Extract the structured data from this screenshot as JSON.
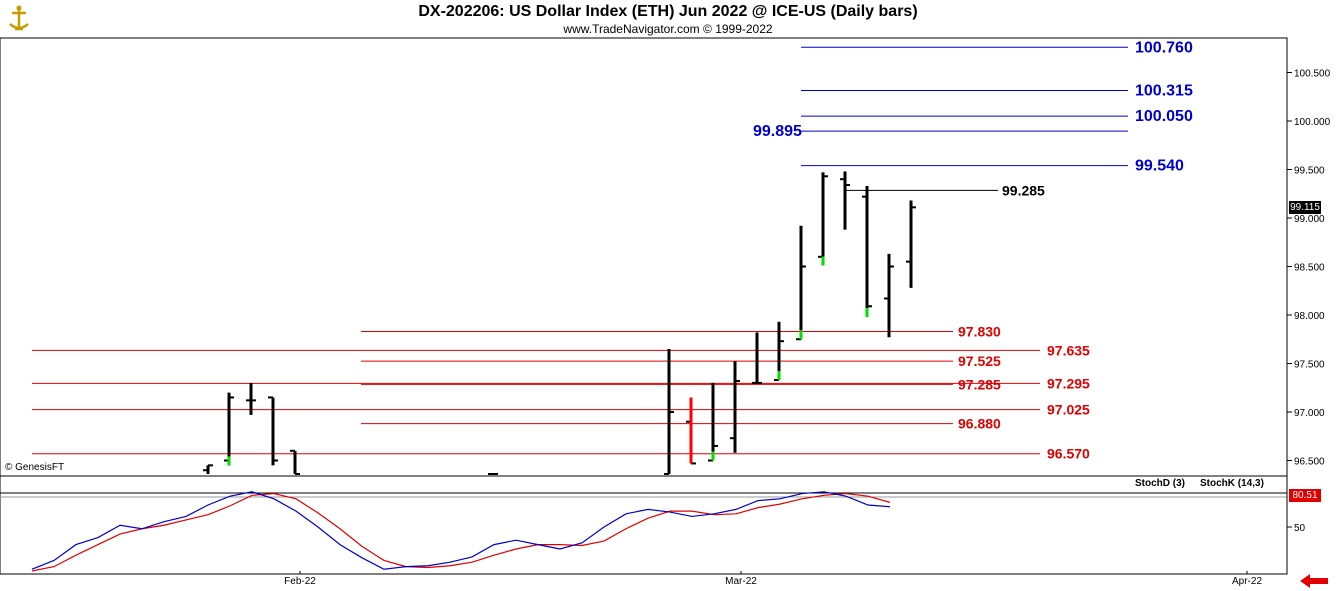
{
  "header": {
    "title": "DX-202206:  US Dollar Index (ETH) Jun 2022 @ ICE-US  (Daily bars)",
    "subtitle": "www.TradeNavigator.com © 1999-2022"
  },
  "footer": {
    "copyright": "© GenesisFT"
  },
  "colors": {
    "bar": "#000000",
    "bar_up_highlight": "#00e000",
    "bar_down_highlight": "#ff0000",
    "support_line": "#e00000",
    "resistance_line": "#0000cc",
    "stoch_d": "#e00000",
    "stoch_k": "#0000cc"
  },
  "chart_data": {
    "type": "bar",
    "title": "DX-202206:  US Dollar Index (ETH) Jun 2022 @ ICE-US  (Daily bars)",
    "y_axis": {
      "ticks": [
        "100.500",
        "100.000",
        "99.500",
        "99.000",
        "98.500",
        "98.000",
        "97.500",
        "97.000",
        "96.500"
      ],
      "range": [
        96.35,
        100.95
      ],
      "last_price": "99.115"
    },
    "x_axis": {
      "ticks": [
        "Feb-22",
        "Mar-22",
        "Apr-22"
      ]
    },
    "ohlc_bars": [
      {
        "open": 96.4,
        "high": 96.45,
        "low": 96.3,
        "close": 96.45
      },
      {
        "open": 96.5,
        "high": 97.2,
        "low": 96.45,
        "close": 97.15
      },
      {
        "open": 97.12,
        "high": 97.3,
        "low": 96.97,
        "close": 97.12
      },
      {
        "open": 97.15,
        "high": 97.15,
        "low": 96.45,
        "close": 96.5
      },
      {
        "open": 96.6,
        "high": 96.6,
        "low": 96.3,
        "close": 96.35
      },
      {
        "open": 96.33,
        "high": 96.36,
        "low": 96.3,
        "close": 96.35
      },
      {
        "open": 96.3,
        "high": 97.65,
        "low": 96.3,
        "close": 97.0
      },
      {
        "open": 96.9,
        "high": 97.15,
        "low": 96.47,
        "close": 96.47
      },
      {
        "open": 96.5,
        "high": 97.3,
        "low": 96.5,
        "close": 96.65
      },
      {
        "open": 96.73,
        "high": 97.52,
        "low": 96.58,
        "close": 97.32
      },
      {
        "open": 97.3,
        "high": 97.82,
        "low": 97.3,
        "close": 97.3
      },
      {
        "open": 97.33,
        "high": 97.93,
        "low": 97.33,
        "close": 97.73
      },
      {
        "open": 97.75,
        "high": 98.92,
        "low": 97.75,
        "close": 98.5
      },
      {
        "open": 98.6,
        "high": 99.47,
        "low": 98.51,
        "close": 99.43
      },
      {
        "open": 99.4,
        "high": 99.48,
        "low": 98.88,
        "close": 99.34
      },
      {
        "open": 99.22,
        "high": 99.33,
        "low": 97.98,
        "close": 98.09
      },
      {
        "open": 98.17,
        "high": 98.63,
        "low": 97.77,
        "close": 98.5
      },
      {
        "open": 98.55,
        "high": 99.18,
        "low": 98.28,
        "close": 99.11
      }
    ],
    "level_lines": [
      {
        "label": "100.760",
        "value": 100.76,
        "kind": "resistance"
      },
      {
        "label": "100.315",
        "value": 100.315,
        "kind": "resistance"
      },
      {
        "label": "100.050",
        "value": 100.05,
        "kind": "resistance"
      },
      {
        "label": "99.895",
        "value": 99.895,
        "kind": "resistance"
      },
      {
        "label": "99.540",
        "value": 99.54,
        "kind": "resistance"
      },
      {
        "label": "99.285",
        "value": 99.285,
        "kind": "pivot"
      },
      {
        "label": "97.830",
        "value": 97.83,
        "kind": "support"
      },
      {
        "label": "97.635",
        "value": 97.635,
        "kind": "support"
      },
      {
        "label": "97.525",
        "value": 97.525,
        "kind": "support"
      },
      {
        "label": "97.295",
        "value": 97.295,
        "kind": "support"
      },
      {
        "label": "97.285",
        "value": 97.285,
        "kind": "support"
      },
      {
        "label": "97.025",
        "value": 97.025,
        "kind": "support"
      },
      {
        "label": "96.880",
        "value": 96.88,
        "kind": "support"
      },
      {
        "label": "96.570",
        "value": 96.57,
        "kind": "support"
      }
    ],
    "stochastic": {
      "d_label": "StochD (3)",
      "k_label": "StochK (14,3)",
      "tick": "50",
      "last_value": "80.51",
      "k_values": [
        2,
        12,
        30,
        38,
        52,
        48,
        56,
        62,
        75,
        85,
        90,
        82,
        68,
        50,
        30,
        15,
        2,
        5,
        6,
        10,
        16,
        30,
        35,
        30,
        25,
        32,
        50,
        65,
        70,
        67,
        62,
        65,
        70,
        80,
        82,
        88,
        90,
        85,
        75,
        73
      ],
      "d_values": [
        0,
        5,
        18,
        30,
        42,
        48,
        52,
        58,
        64,
        74,
        86,
        88,
        82,
        66,
        48,
        28,
        12,
        5,
        4,
        6,
        10,
        18,
        25,
        30,
        30,
        29,
        34,
        48,
        60,
        68,
        68,
        64,
        65,
        72,
        76,
        82,
        86,
        88,
        85,
        78
      ]
    }
  }
}
